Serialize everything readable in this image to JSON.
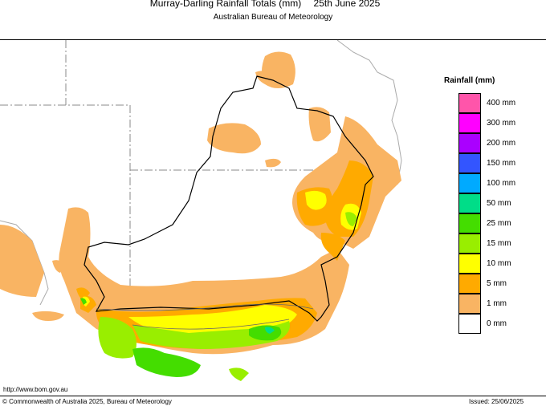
{
  "header": {
    "title": "Murray-Darling Rainfall Totals (mm)",
    "date": "25th June 2025",
    "subtitle": "Australian Bureau of Meteorology"
  },
  "legend": {
    "title": "Rainfall (mm)",
    "items": [
      {
        "label": "400 mm",
        "color": "#ff55aa"
      },
      {
        "label": "300 mm",
        "color": "#ff00ff"
      },
      {
        "label": "200 mm",
        "color": "#aa00ff"
      },
      {
        "label": "150 mm",
        "color": "#3355ff"
      },
      {
        "label": "100 mm",
        "color": "#00aaff"
      },
      {
        "label": "50 mm",
        "color": "#00dd88"
      },
      {
        "label": "25 mm",
        "color": "#44dd00"
      },
      {
        "label": "15 mm",
        "color": "#99ee00"
      },
      {
        "label": "10 mm",
        "color": "#ffff00"
      },
      {
        "label": "5 mm",
        "color": "#ffaa00"
      },
      {
        "label": "1 mm",
        "color": "#f9b463"
      },
      {
        "label": "0 mm",
        "color": "#ffffff"
      }
    ]
  },
  "footer": {
    "url": "http://www.bom.gov.au",
    "copyright": "© Commonwealth of Australia 2025, Bureau of Meteorology",
    "issued": "Issued: 25/06/2025"
  }
}
